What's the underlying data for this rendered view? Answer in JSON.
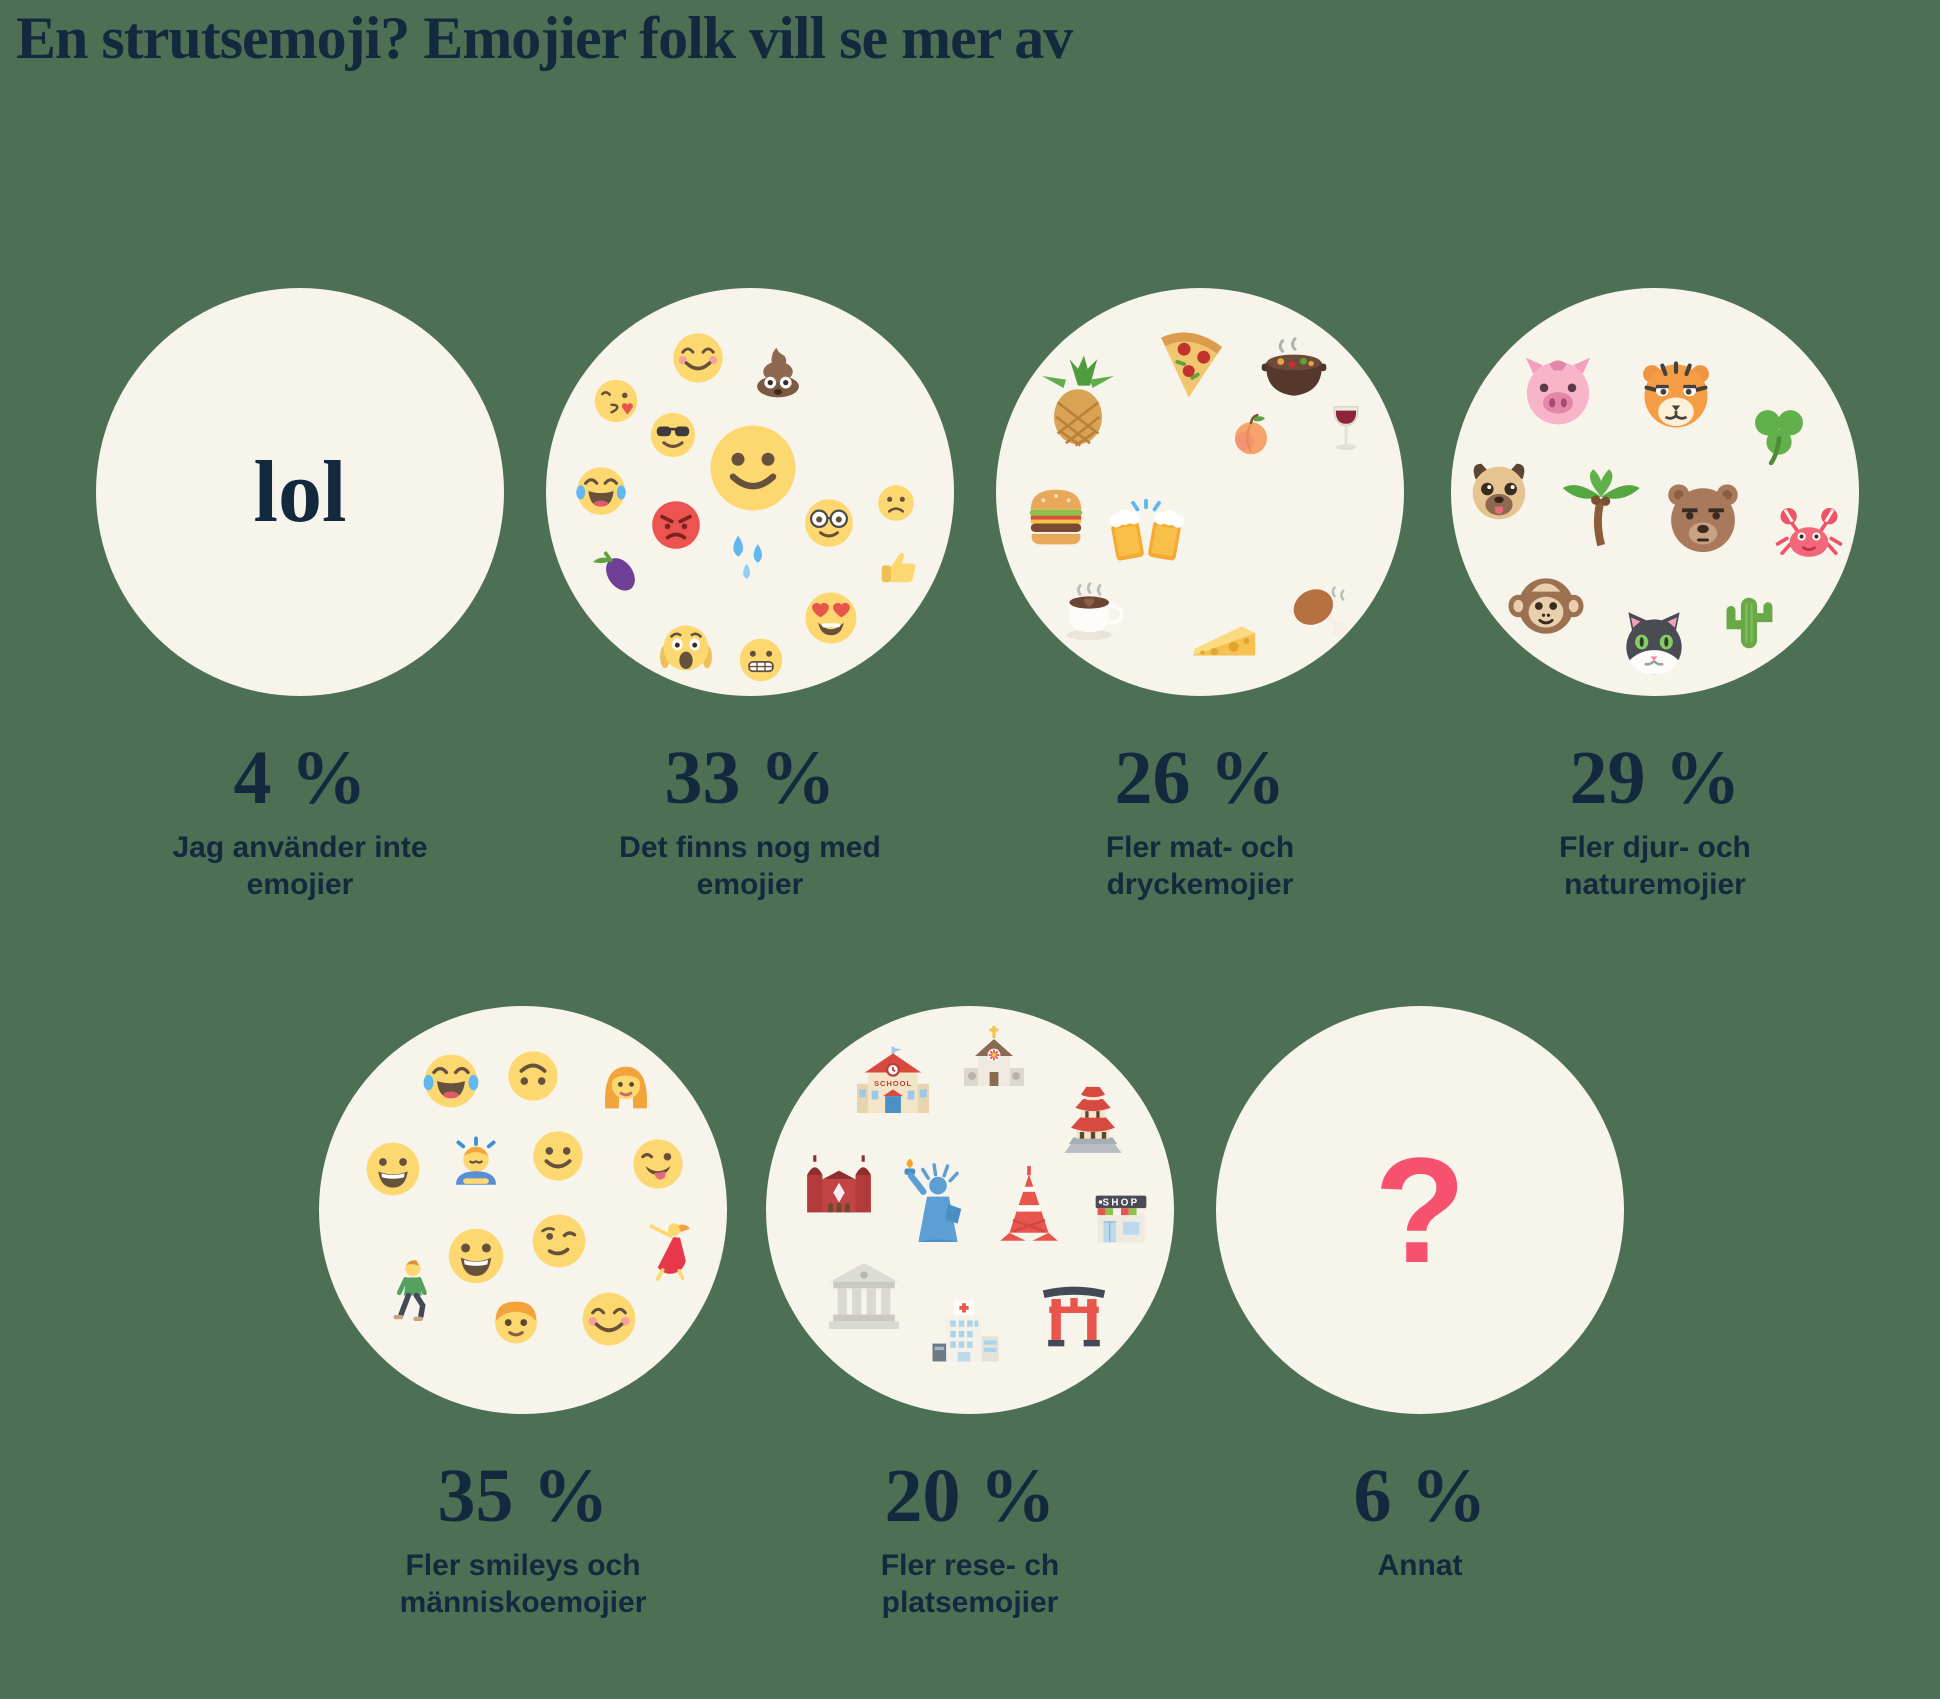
{
  "title": "En strutsemoji? Emojier folk vill se mer av",
  "colors": {
    "background": "#4d7054",
    "circle": "#f7f4ec",
    "text_navy": "#13293d",
    "accent_pink": "#f6526e"
  },
  "chart_data": {
    "type": "pie",
    "variant": "emoji-pictogram-circles",
    "title": "En strutsemoji? Emojier folk vill se mer av",
    "unit": "%",
    "categories": [
      "Jag använder inte emojier",
      "Det finns nog med emojier",
      "Fler mat- och dryckemojier",
      "Fler djur- och naturemojier",
      "Fler smileys och människoemojier",
      "Fler rese- ch platsemojier",
      "Annat"
    ],
    "values": [
      4,
      33,
      26,
      29,
      35,
      20,
      6
    ]
  },
  "segments": [
    {
      "value": "4 %",
      "label": "Jag använder inte emojier",
      "circle_text": "lol",
      "emojis": []
    },
    {
      "value": "33 %",
      "label": "Det finns nog med emojier",
      "circle_text": "",
      "emojis": [
        "smiling-blush",
        "poop",
        "kissing-heart",
        "sunglasses-face",
        "slight-smile",
        "joy",
        "angry",
        "nerd",
        "slight-frown",
        "eggplant",
        "sweat-drops",
        "thumbs-up",
        "heart-eyes",
        "scream",
        "grimace"
      ]
    },
    {
      "value": "26 %",
      "label": "Fler mat- och dryckemojier",
      "circle_text": "",
      "emojis": [
        "pineapple",
        "pizza",
        "stew",
        "burger",
        "beers",
        "peach",
        "wine",
        "coffee",
        "cheese",
        "chicken-leg"
      ]
    },
    {
      "value": "29 %",
      "label": "Fler djur- och naturemojier",
      "circle_text": "",
      "emojis": [
        "pig",
        "tiger",
        "clover",
        "pug",
        "palm",
        "bear",
        "crab",
        "monkey",
        "cat",
        "cactus"
      ]
    },
    {
      "value": "35 %",
      "label": "Fler smileys och människoemojier",
      "circle_text": "",
      "emojis": [
        "joy",
        "upside-down",
        "woman-face",
        "grinning",
        "bowing",
        "slight-smile",
        "wink-tongue",
        "big-grin",
        "smirk-wink",
        "dancer",
        "walking-man",
        "boy-face",
        "smiling-blush"
      ]
    },
    {
      "value": "20 %",
      "label": "Fler rese- ch platsemojier",
      "circle_text": "",
      "emojis": [
        "school",
        "church",
        "japanese-castle",
        "synagogue",
        "statue-of-liberty",
        "tokyo-tower",
        "convenience-store",
        "classical-building",
        "hospital",
        "torii-gate"
      ]
    },
    {
      "value": "6 %",
      "label": "Annat",
      "circle_text": "?",
      "emojis": []
    }
  ]
}
